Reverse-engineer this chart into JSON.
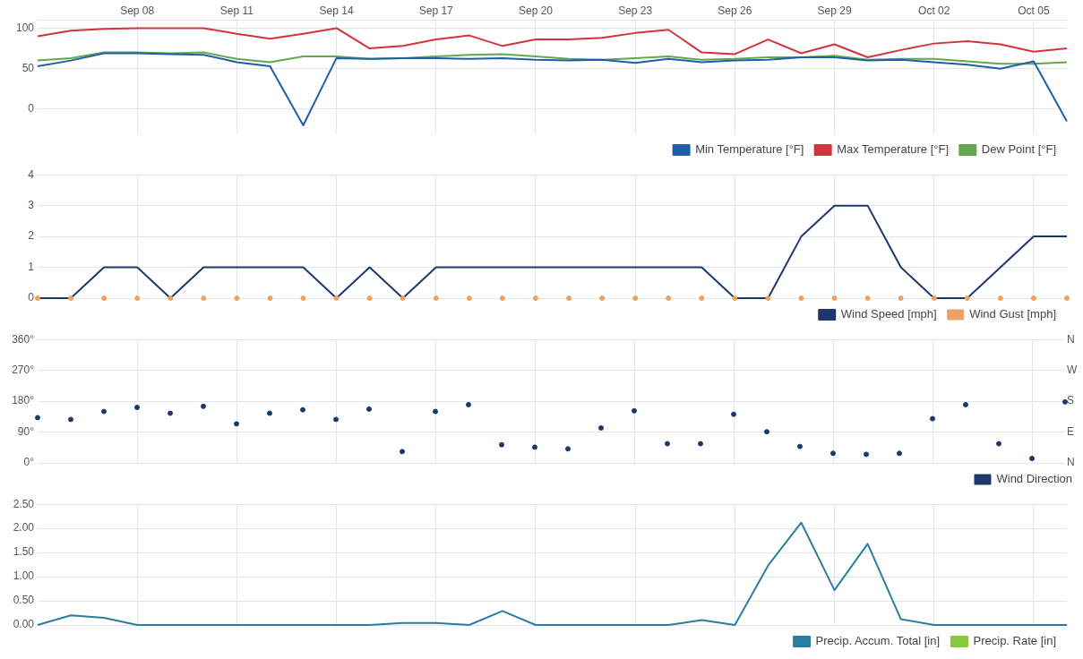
{
  "chart_data": [
    {
      "type": "line",
      "x": [
        "--09-05",
        "--09-06",
        "--09-07",
        "--09-08",
        "--09-09",
        "--09-10",
        "--09-11",
        "--09-12",
        "--09-13",
        "--09-14",
        "--09-15",
        "--09-16",
        "--09-17",
        "--09-18",
        "--09-19",
        "--09-20",
        "--09-21",
        "--09-22",
        "--09-23",
        "--09-24",
        "--09-25",
        "--09-26",
        "--09-27",
        "--09-28",
        "--09-29",
        "--09-30",
        "--10-01",
        "--10-02",
        "--10-03",
        "--10-04",
        "--10-05",
        "--10-06"
      ],
      "xlim": [
        "--09-05",
        "--10-06"
      ],
      "xticks": [
        {
          "value": "--09-08",
          "label": "Sep 08"
        },
        {
          "value": "--09-11",
          "label": "Sep 11"
        },
        {
          "value": "--09-14",
          "label": "Sep 14"
        },
        {
          "value": "--09-17",
          "label": "Sep 17"
        },
        {
          "value": "--09-20",
          "label": "Sep 20"
        },
        {
          "value": "--09-23",
          "label": "Sep 23"
        },
        {
          "value": "--09-26",
          "label": "Sep 26"
        },
        {
          "value": "--09-29",
          "label": "Sep 29"
        },
        {
          "value": "--10-02",
          "label": "Oct 02"
        },
        {
          "value": "--10-05",
          "label": "Oct 05"
        }
      ],
      "ylim": [
        -30,
        110
      ],
      "yticks": [
        0,
        50,
        100
      ],
      "grid": true,
      "legend": "bottom right",
      "marker": "none",
      "series": [
        {
          "name": "Min Temperature [°F]",
          "color": "#1f5fa8",
          "values": [
            53,
            60,
            69,
            69,
            68,
            67,
            58,
            53,
            -20,
            63,
            62,
            63,
            63,
            62,
            63,
            61,
            60,
            61,
            57,
            62,
            58,
            60,
            61,
            64,
            64,
            60,
            61,
            58,
            55,
            50,
            59,
            -15
          ]
        },
        {
          "name": "Max Temperature [°F]",
          "color": "#d1343b",
          "values": [
            90,
            97,
            99,
            100,
            100,
            100,
            93,
            87,
            93,
            100,
            75,
            78,
            86,
            91,
            78,
            86,
            86,
            88,
            94,
            98,
            70,
            68,
            86,
            69,
            80,
            64,
            73,
            81,
            84,
            80,
            71,
            75
          ]
        },
        {
          "name": "Dew Point [°F]",
          "color": "#64a84d",
          "values": [
            60,
            63,
            70,
            70,
            69,
            70,
            62,
            58,
            65,
            65,
            62,
            63,
            65,
            67,
            68,
            65,
            62,
            61,
            63,
            65,
            61,
            62,
            64,
            64,
            66,
            61,
            62,
            62,
            59,
            56,
            56,
            58
          ]
        }
      ]
    },
    {
      "type": "line",
      "x": [
        "--09-05",
        "--09-06",
        "--09-07",
        "--09-08",
        "--09-09",
        "--09-10",
        "--09-11",
        "--09-12",
        "--09-13",
        "--09-14",
        "--09-15",
        "--09-16",
        "--09-17",
        "--09-18",
        "--09-19",
        "--09-20",
        "--09-21",
        "--09-22",
        "--09-23",
        "--09-24",
        "--09-25",
        "--09-26",
        "--09-27",
        "--09-28",
        "--09-29",
        "--09-30",
        "--10-01",
        "--10-02",
        "--10-03",
        "--10-04",
        "--10-05",
        "--10-06"
      ],
      "xlim": [
        "--09-05",
        "--10-06"
      ],
      "xticks": [
        {
          "value": "--09-08",
          "label": null
        },
        {
          "value": "--09-11",
          "label": null
        },
        {
          "value": "--09-14",
          "label": null
        },
        {
          "value": "--09-17",
          "label": null
        },
        {
          "value": "--09-20",
          "label": null
        },
        {
          "value": "--09-23",
          "label": null
        },
        {
          "value": "--09-26",
          "label": null
        },
        {
          "value": "--09-29",
          "label": null
        },
        {
          "value": "--10-02",
          "label": null
        },
        {
          "value": "--10-05",
          "label": null
        }
      ],
      "ylim": [
        0,
        4
      ],
      "yticks": [
        0,
        1,
        2,
        3,
        4
      ],
      "grid": true,
      "legend": "bottom right",
      "marker": "none",
      "tick_labels": "y",
      "series": [
        {
          "name": "Wind Speed [mph]",
          "color": "#1b3a6b",
          "values": [
            0,
            0,
            1,
            1,
            0,
            1,
            1,
            1,
            1,
            0,
            1,
            0,
            1,
            1,
            1,
            1,
            1,
            1,
            1,
            1,
            1,
            0,
            0,
            2,
            3,
            3,
            1,
            0,
            0,
            1,
            2,
            2
          ]
        },
        {
          "name": "Wind Gust [mph]",
          "color": "#f0a060",
          "type": "scatter",
          "marker": "circle",
          "values": [
            0,
            0,
            0,
            0,
            0,
            0,
            0,
            0,
            0,
            0,
            0,
            0,
            0,
            0,
            0,
            0,
            0,
            0,
            0,
            0,
            0,
            0,
            0,
            0,
            0,
            0,
            0,
            0,
            0,
            0,
            0,
            0
          ]
        }
      ]
    },
    {
      "type": "scatter",
      "x": [
        "--09-05",
        "--09-06",
        "--09-07",
        "--09-08",
        "--09-09",
        "--09-10",
        "--09-11",
        "--09-12",
        "--09-13",
        "--09-14",
        "--09-15",
        "--09-16",
        "--09-17",
        "--09-18",
        "--09-19",
        "--09-20",
        "--09-21",
        "--09-22",
        "--09-23",
        "--09-24",
        "--09-25",
        "--09-26",
        "--09-27",
        "--09-28",
        "--09-29",
        "--09-30",
        "--10-01",
        "--10-02",
        "--10-03",
        "--10-04",
        "--10-05",
        "--10-06"
      ],
      "xlim": [
        "--09-05",
        "--10-06"
      ],
      "xticks": [
        {
          "value": "--09-08",
          "label": null
        },
        {
          "value": "--09-11",
          "label": null
        },
        {
          "value": "--09-14",
          "label": null
        },
        {
          "value": "--09-17",
          "label": null
        },
        {
          "value": "--09-20",
          "label": null
        },
        {
          "value": "--09-23",
          "label": null
        },
        {
          "value": "--09-26",
          "label": null
        },
        {
          "value": "--09-29",
          "label": null
        },
        {
          "value": "--10-02",
          "label": null
        },
        {
          "value": "--10-05",
          "label": null
        }
      ],
      "ylim": [
        0,
        360
      ],
      "yticks": [
        {
          "value": 0,
          "label": "0°"
        },
        {
          "value": 90,
          "label": "90°"
        },
        {
          "value": 180,
          "label": "180°"
        },
        {
          "value": 270,
          "label": "270°"
        },
        {
          "value": 360,
          "label": "360°"
        }
      ],
      "y2_categories": [
        "N",
        "W",
        "S",
        "E",
        "N"
      ],
      "grid": true,
      "legend": "bottom right",
      "marker": "circle",
      "tick_labels": "y",
      "series": [
        {
          "name": "Wind Direction",
          "color": "#1b3a6b",
          "values": [
            132,
            127,
            150,
            162,
            145,
            165,
            114,
            145,
            155,
            127,
            157,
            33,
            150,
            170,
            53,
            46,
            41,
            102,
            152,
            56,
            56,
            142,
            91,
            48,
            28,
            25,
            28,
            129,
            170,
            56,
            13,
            178
          ]
        }
      ]
    },
    {
      "type": "line",
      "x": [
        "--09-05",
        "--09-06",
        "--09-07",
        "--09-08",
        "--09-09",
        "--09-10",
        "--09-11",
        "--09-12",
        "--09-13",
        "--09-14",
        "--09-15",
        "--09-16",
        "--09-17",
        "--09-18",
        "--09-19",
        "--09-20",
        "--09-21",
        "--09-22",
        "--09-23",
        "--09-24",
        "--09-25",
        "--09-26",
        "--09-27",
        "--09-28",
        "--09-29",
        "--09-30",
        "--10-01",
        "--10-02",
        "--10-03",
        "--10-04",
        "--10-05",
        "--10-06"
      ],
      "xlim": [
        "--09-05",
        "--10-06"
      ],
      "xticks": [
        {
          "value": "--09-08",
          "label": null
        },
        {
          "value": "--09-11",
          "label": null
        },
        {
          "value": "--09-14",
          "label": null
        },
        {
          "value": "--09-17",
          "label": null
        },
        {
          "value": "--09-20",
          "label": null
        },
        {
          "value": "--09-23",
          "label": null
        },
        {
          "value": "--09-26",
          "label": null
        },
        {
          "value": "--09-29",
          "label": null
        },
        {
          "value": "--10-02",
          "label": null
        },
        {
          "value": "--10-05",
          "label": null
        }
      ],
      "ylim": [
        0,
        2.5
      ],
      "yticks": [
        {
          "value": 0,
          "label": "0.00"
        },
        {
          "value": 0.5,
          "label": "0.50"
        },
        {
          "value": 1,
          "label": "1.00"
        },
        {
          "value": 1.5,
          "label": "1.50"
        },
        {
          "value": 2,
          "label": "2.00"
        },
        {
          "value": 2.5,
          "label": "2.50"
        }
      ],
      "grid": true,
      "legend": "bottom right",
      "marker": "none",
      "tick_labels": "y",
      "series": [
        {
          "name": "Precip. Accum. Total [in]",
          "color": "#2a7f9e",
          "values": [
            0,
            0.2,
            0.15,
            0,
            0,
            0,
            0,
            0,
            0,
            0,
            0,
            0.04,
            0.04,
            0,
            0.29,
            0,
            0,
            0,
            0,
            0,
            0.1,
            0,
            1.23,
            2.12,
            0.72,
            1.68,
            0.12,
            0,
            0,
            0,
            0,
            0
          ]
        },
        {
          "name": "Precip. Rate [in]",
          "color": "#8cc63f",
          "values": [
            null,
            null,
            null,
            null,
            null,
            null,
            null,
            null,
            null,
            null,
            null,
            null,
            null,
            null,
            null,
            null,
            null,
            null,
            null,
            null,
            null,
            null,
            null,
            null,
            null,
            null,
            null,
            null,
            null,
            null,
            null,
            null
          ]
        }
      ]
    }
  ]
}
